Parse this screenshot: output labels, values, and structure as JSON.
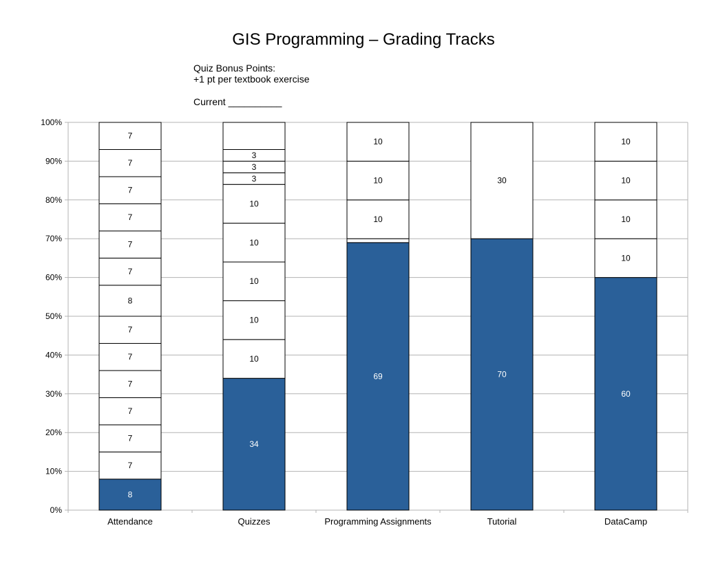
{
  "chart_data": {
    "type": "stacked_bar",
    "title": "GIS Programming – Grading Tracks",
    "notes": [
      "Quiz Bonus Points:",
      "+1 pt per textbook exercise"
    ],
    "current_label": "Current __________",
    "y_unit": "percent",
    "ylim": [
      0,
      100
    ],
    "y_ticks": [
      "0%",
      "10%",
      "20%",
      "30%",
      "40%",
      "50%",
      "60%",
      "70%",
      "80%",
      "90%",
      "100%"
    ],
    "grid": true,
    "categories": [
      "Attendance",
      "Quizzes",
      "Programming Assignments",
      "Tutorial",
      "DataCamp"
    ],
    "bars": [
      {
        "category": "Attendance",
        "segments": [
          8,
          7,
          7,
          7,
          7,
          7,
          7,
          8,
          7,
          7,
          7,
          7,
          7,
          7
        ],
        "filled": [
          true,
          false,
          false,
          false,
          false,
          false,
          false,
          false,
          false,
          false,
          false,
          false,
          false,
          false
        ]
      },
      {
        "category": "Quizzes",
        "segments": [
          34,
          10,
          10,
          10,
          10,
          10,
          3,
          3,
          3,
          7
        ],
        "labels": [
          "34",
          "10",
          "10",
          "10",
          "10",
          "10",
          "3",
          "3",
          "3",
          ""
        ],
        "filled": [
          true,
          false,
          false,
          false,
          false,
          false,
          false,
          false,
          false,
          false
        ]
      },
      {
        "category": "Programming Assignments",
        "segments": [
          69,
          1,
          10,
          10,
          10
        ],
        "labels": [
          "69",
          "",
          "10",
          "10",
          "10"
        ],
        "filled": [
          true,
          false,
          false,
          false,
          false
        ]
      },
      {
        "category": "Tutorial",
        "segments": [
          70,
          30
        ],
        "filled": [
          true,
          false
        ]
      },
      {
        "category": "DataCamp",
        "segments": [
          60,
          10,
          10,
          10,
          10
        ],
        "filled": [
          true,
          false,
          false,
          false,
          false
        ]
      }
    ],
    "colors": {
      "filled": "#2a6099",
      "empty": "#ffffff",
      "grid": "#b3b3b3",
      "outline": "#000000",
      "filled_text": "#ffffff"
    }
  }
}
